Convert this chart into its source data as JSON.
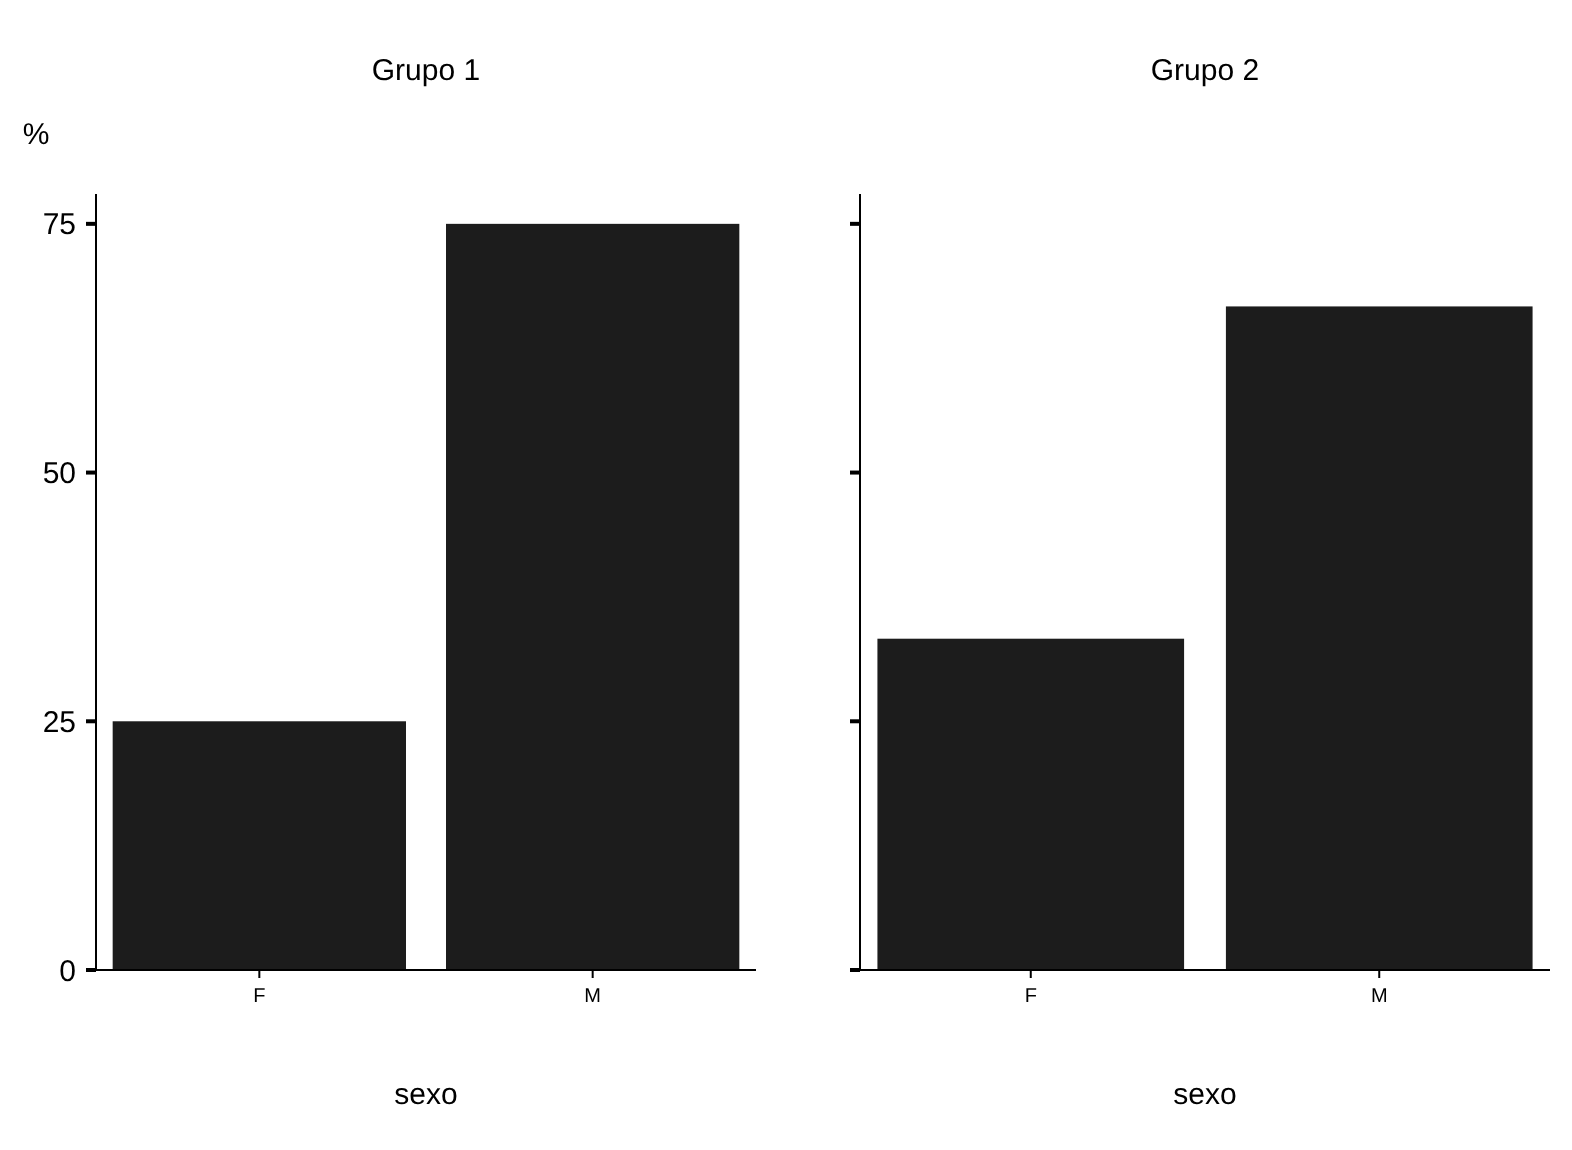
{
  "chart_data": [
    {
      "type": "bar",
      "title": "Grupo 1",
      "xlabel": "sexo",
      "ylabel": "%",
      "categories": [
        "F",
        "M"
      ],
      "values": [
        25,
        75
      ],
      "color": "#1c1c1c",
      "ylim": [
        0,
        78
      ],
      "yticks": [
        0,
        25,
        50,
        75
      ],
      "grid": false
    },
    {
      "type": "bar",
      "title": "Grupo 2",
      "xlabel": "sexo",
      "categories": [
        "F",
        "M"
      ],
      "values": [
        33.3,
        66.7
      ],
      "color": "#1c1c1c",
      "ylim": [
        0,
        78
      ],
      "yticks": [
        0,
        25,
        50,
        75
      ],
      "grid": false,
      "tick_labels": "x"
    }
  ]
}
